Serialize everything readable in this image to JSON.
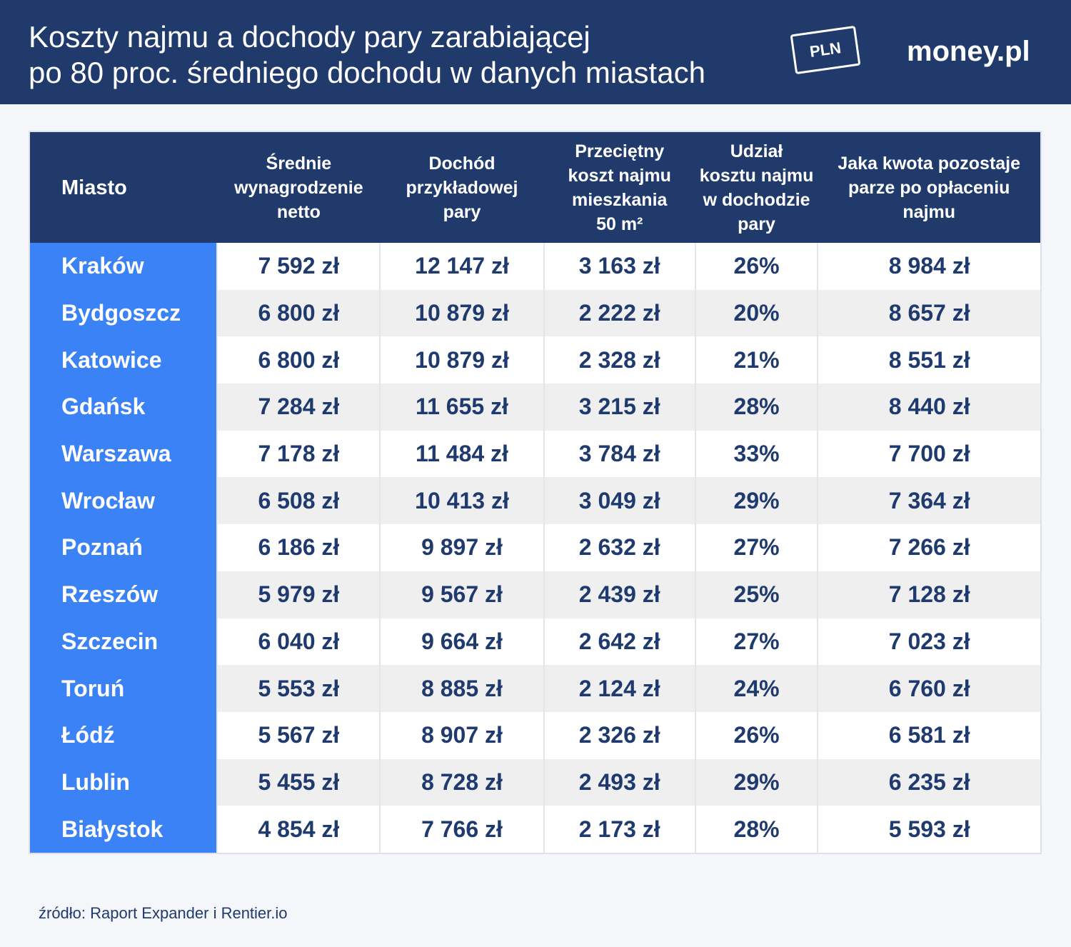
{
  "header": {
    "title_lines": [
      "Koszty najmu a dochody pary zarabiającej",
      "po 80 proc. średniego dochodu w danych miastach"
    ],
    "icon_label": "PLN",
    "brand": "money.pl"
  },
  "table": {
    "columns": [
      [
        "Miasto"
      ],
      [
        "Średnie",
        "wynagrodzenie",
        "netto"
      ],
      [
        "Dochód",
        "przykładowej",
        "pary"
      ],
      [
        "Przeciętny",
        "koszt najmu",
        "mieszkania",
        "50 m²"
      ],
      [
        "Udział",
        "kosztu najmu",
        "w dochodzie",
        "pary"
      ],
      [
        "Jaka kwota pozostaje",
        "parze po opłaceniu",
        "najmu"
      ]
    ],
    "rows": [
      [
        "Kraków",
        "7 592 zł",
        "12 147 zł",
        "3 163 zł",
        "26%",
        "8 984 zł"
      ],
      [
        "Bydgoszcz",
        "6 800 zł",
        "10 879 zł",
        "2 222 zł",
        "20%",
        "8 657 zł"
      ],
      [
        "Katowice",
        "6 800 zł",
        "10 879 zł",
        "2 328 zł",
        "21%",
        "8 551 zł"
      ],
      [
        "Gdańsk",
        "7 284 zł",
        "11 655 zł",
        "3 215 zł",
        "28%",
        "8 440 zł"
      ],
      [
        "Warszawa",
        "7 178 zł",
        "11 484 zł",
        "3 784 zł",
        "33%",
        "7 700 zł"
      ],
      [
        "Wrocław",
        "6 508 zł",
        "10 413 zł",
        "3 049 zł",
        "29%",
        "7 364 zł"
      ],
      [
        "Poznań",
        "6 186 zł",
        "9 897 zł",
        "2 632 zł",
        "27%",
        "7 266 zł"
      ],
      [
        "Rzeszów",
        "5 979 zł",
        "9 567 zł",
        "2 439 zł",
        "25%",
        "7 128 zł"
      ],
      [
        "Szczecin",
        "6 040 zł",
        "9 664 zł",
        "2 642 zł",
        "27%",
        "7 023 zł"
      ],
      [
        "Toruń",
        "5 553 zł",
        "8 885 zł",
        "2 124 zł",
        "24%",
        "6 760 zł"
      ],
      [
        "Łódź",
        "5 567 zł",
        "8 907 zł",
        "2 326 zł",
        "26%",
        "6 581 zł"
      ],
      [
        "Lublin",
        "5 455 zł",
        "8 728 zł",
        "2 493 zł",
        "29%",
        "6 235 zł"
      ],
      [
        "Białystok",
        "4 854 zł",
        "7 766 zł",
        "2 173 zł",
        "28%",
        "5 593 zł"
      ]
    ]
  },
  "footer": {
    "source": "źródło: Raport Expander i Rentier.io"
  }
}
